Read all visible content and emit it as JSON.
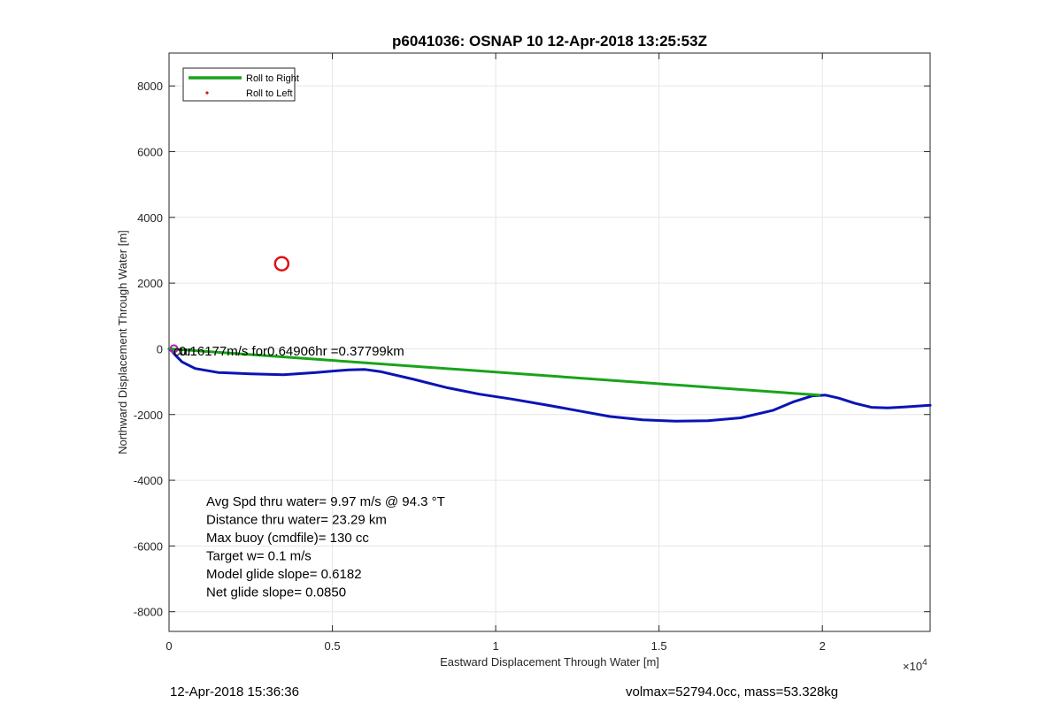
{
  "chart_data": {
    "type": "line",
    "title": "p6041036: OSNAP 10 12-Apr-2018 13:25:53Z",
    "xlabel": "Eastward Displacement Through Water [m]",
    "ylabel": "Northward Displacement Through Water [m]",
    "x_exponent_label": "×10",
    "x_exponent_power": "4",
    "xlim": [
      0,
      23300
    ],
    "ylim": [
      -8600,
      9000
    ],
    "x_ticks": [
      0,
      5000,
      10000,
      15000,
      20000
    ],
    "x_tick_labels": [
      "0",
      "0.5",
      "1",
      "1.5",
      "2"
    ],
    "y_ticks": [
      -8000,
      -6000,
      -4000,
      -2000,
      0,
      2000,
      4000,
      6000,
      8000
    ],
    "y_tick_labels": [
      "-8000",
      "-6000",
      "-4000",
      "-2000",
      "0",
      "2000",
      "4000",
      "6000",
      "8000"
    ],
    "grid": true,
    "legend_position": "top-left",
    "legend": [
      {
        "label": "Roll to Right",
        "color": "#1aa31a",
        "marker": "line"
      },
      {
        "label": "Roll to Left",
        "color": "#e01010",
        "marker": "dot"
      }
    ],
    "series": [
      {
        "role": "track",
        "color": "#0a14b4",
        "x": [
          0,
          100,
          200,
          400,
          800,
          1500,
          2500,
          3500,
          4500,
          5500,
          6000,
          6500,
          7500,
          8500,
          9500,
          10500,
          11500,
          12500,
          13500,
          14500,
          15500,
          16500,
          17500,
          18500,
          19100,
          19700,
          20100,
          20500,
          21000,
          21500,
          22000,
          22500,
          23300
        ],
        "y": [
          0,
          -80,
          -200,
          -400,
          -600,
          -720,
          -760,
          -790,
          -720,
          -640,
          -630,
          -700,
          -930,
          -1180,
          -1380,
          -1530,
          -1700,
          -1880,
          -2060,
          -2160,
          -2200,
          -2190,
          -2100,
          -1870,
          -1620,
          -1430,
          -1410,
          -1500,
          -1660,
          -1780,
          -1800,
          -1770,
          -1720
        ]
      },
      {
        "name": "Roll to Right",
        "color": "#1aa31a",
        "x": [
          0,
          19900
        ],
        "y": [
          0,
          -1410
        ]
      }
    ],
    "markers": [
      {
        "x": 3450,
        "y": 2590,
        "color": "#e01010",
        "shape": "circle"
      },
      {
        "x": 150,
        "y": 0,
        "color": "#b020b0",
        "shape": "circle"
      }
    ],
    "annotations": {
      "origin_label": "0.16177m/s for0.64906hr =0.37799km",
      "origin_label_overlap": "cur",
      "stats": [
        "Avg Spd thru water=  9.97 m/s @  94.3 °T",
        "Distance thru water= 23.29 km",
        "Max buoy (cmdfile)= 130 cc",
        "Target w= 0.1 m/s",
        "Model glide slope= 0.6182",
        "Net glide slope= 0.0850"
      ]
    }
  },
  "footer": {
    "left": "12-Apr-2018 15:36:36",
    "right": "volmax=52794.0cc, mass=53.328kg"
  }
}
